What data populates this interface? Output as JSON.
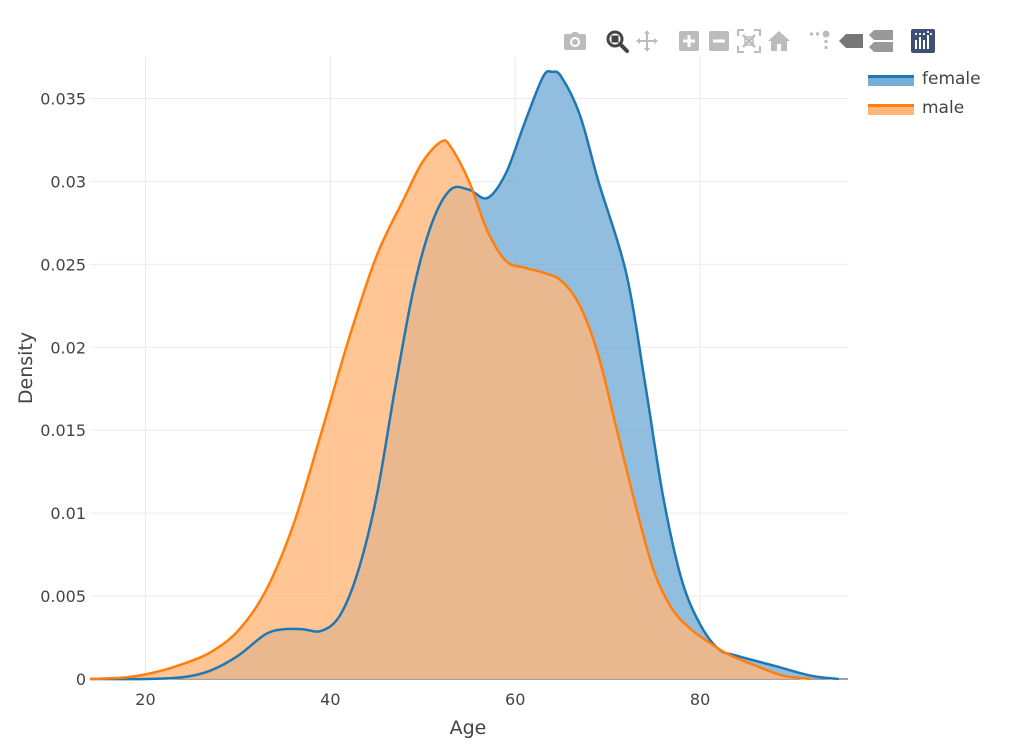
{
  "toolbar": {
    "icons": [
      "camera-icon",
      "zoom-icon",
      "pan-icon",
      "zoom-in-icon",
      "zoom-out-icon",
      "autoscale-icon",
      "reset-axes-icon",
      "spike-lines-icon",
      "hover-closest-icon",
      "hover-compare-icon",
      "plotly-logo-icon"
    ],
    "active": "zoom-icon",
    "icon_color": "#bcbcbc",
    "active_color": "#444444"
  },
  "chart_data": {
    "type": "area",
    "title": "",
    "xlabel": "Age",
    "ylabel": "Density",
    "xlim": [
      14,
      96
    ],
    "ylim": [
      0,
      0.0375
    ],
    "x_ticks": [
      20,
      40,
      60,
      80
    ],
    "x_tick_labels": [
      "20",
      "40",
      "60",
      "80"
    ],
    "y_ticks": [
      0,
      0.005,
      0.01,
      0.015,
      0.02,
      0.025,
      0.03,
      0.035
    ],
    "y_tick_labels": [
      "0",
      "0.005",
      "0.01",
      "0.015",
      "0.02",
      "0.025",
      "0.03",
      "0.035"
    ],
    "grid": true,
    "legend_position": "top-right",
    "series": [
      {
        "name": "female",
        "color": "#1f77b4",
        "fill_color": "#76aed6",
        "points": [
          [
            14,
            0
          ],
          [
            20,
            0
          ],
          [
            24,
            0.0001
          ],
          [
            27,
            0.0005
          ],
          [
            30,
            0.0014
          ],
          [
            33,
            0.0027
          ],
          [
            35,
            0.003
          ],
          [
            37,
            0.003
          ],
          [
            39,
            0.0029
          ],
          [
            41,
            0.0038
          ],
          [
            43,
            0.0065
          ],
          [
            45,
            0.011
          ],
          [
            47,
            0.0175
          ],
          [
            49,
            0.0235
          ],
          [
            51,
            0.0275
          ],
          [
            53,
            0.0295
          ],
          [
            55,
            0.0295
          ],
          [
            57,
            0.029
          ],
          [
            59,
            0.0305
          ],
          [
            61,
            0.0335
          ],
          [
            63,
            0.0363
          ],
          [
            64,
            0.0366
          ],
          [
            65,
            0.0363
          ],
          [
            67,
            0.034
          ],
          [
            69,
            0.03
          ],
          [
            72,
            0.0245
          ],
          [
            74,
            0.018
          ],
          [
            76,
            0.011
          ],
          [
            78,
            0.006
          ],
          [
            80,
            0.0033
          ],
          [
            82,
            0.0018
          ],
          [
            84,
            0.0014
          ],
          [
            88,
            0.0008
          ],
          [
            92,
            0.0002
          ],
          [
            95,
            0
          ]
        ]
      },
      {
        "name": "male",
        "color": "#ff7f0e",
        "fill_color": "#ffb67a",
        "points": [
          [
            14,
            0
          ],
          [
            18,
            0.0001
          ],
          [
            21,
            0.0004
          ],
          [
            24,
            0.0009
          ],
          [
            27,
            0.0016
          ],
          [
            30,
            0.0029
          ],
          [
            33,
            0.0053
          ],
          [
            36,
            0.0093
          ],
          [
            39,
            0.0148
          ],
          [
            42,
            0.0205
          ],
          [
            45,
            0.0255
          ],
          [
            48,
            0.029
          ],
          [
            50,
            0.0312
          ],
          [
            52,
            0.0324
          ],
          [
            53,
            0.0321
          ],
          [
            55,
            0.03
          ],
          [
            57,
            0.027
          ],
          [
            59,
            0.0252
          ],
          [
            61,
            0.0248
          ],
          [
            63,
            0.0245
          ],
          [
            65,
            0.024
          ],
          [
            67,
            0.0225
          ],
          [
            69,
            0.0195
          ],
          [
            71,
            0.015
          ],
          [
            73,
            0.0105
          ],
          [
            75,
            0.0065
          ],
          [
            77,
            0.0042
          ],
          [
            79,
            0.003
          ],
          [
            81,
            0.0022
          ],
          [
            83,
            0.0015
          ],
          [
            86,
            0.0008
          ],
          [
            89,
            0.0002
          ],
          [
            92,
            0
          ]
        ]
      }
    ]
  }
}
